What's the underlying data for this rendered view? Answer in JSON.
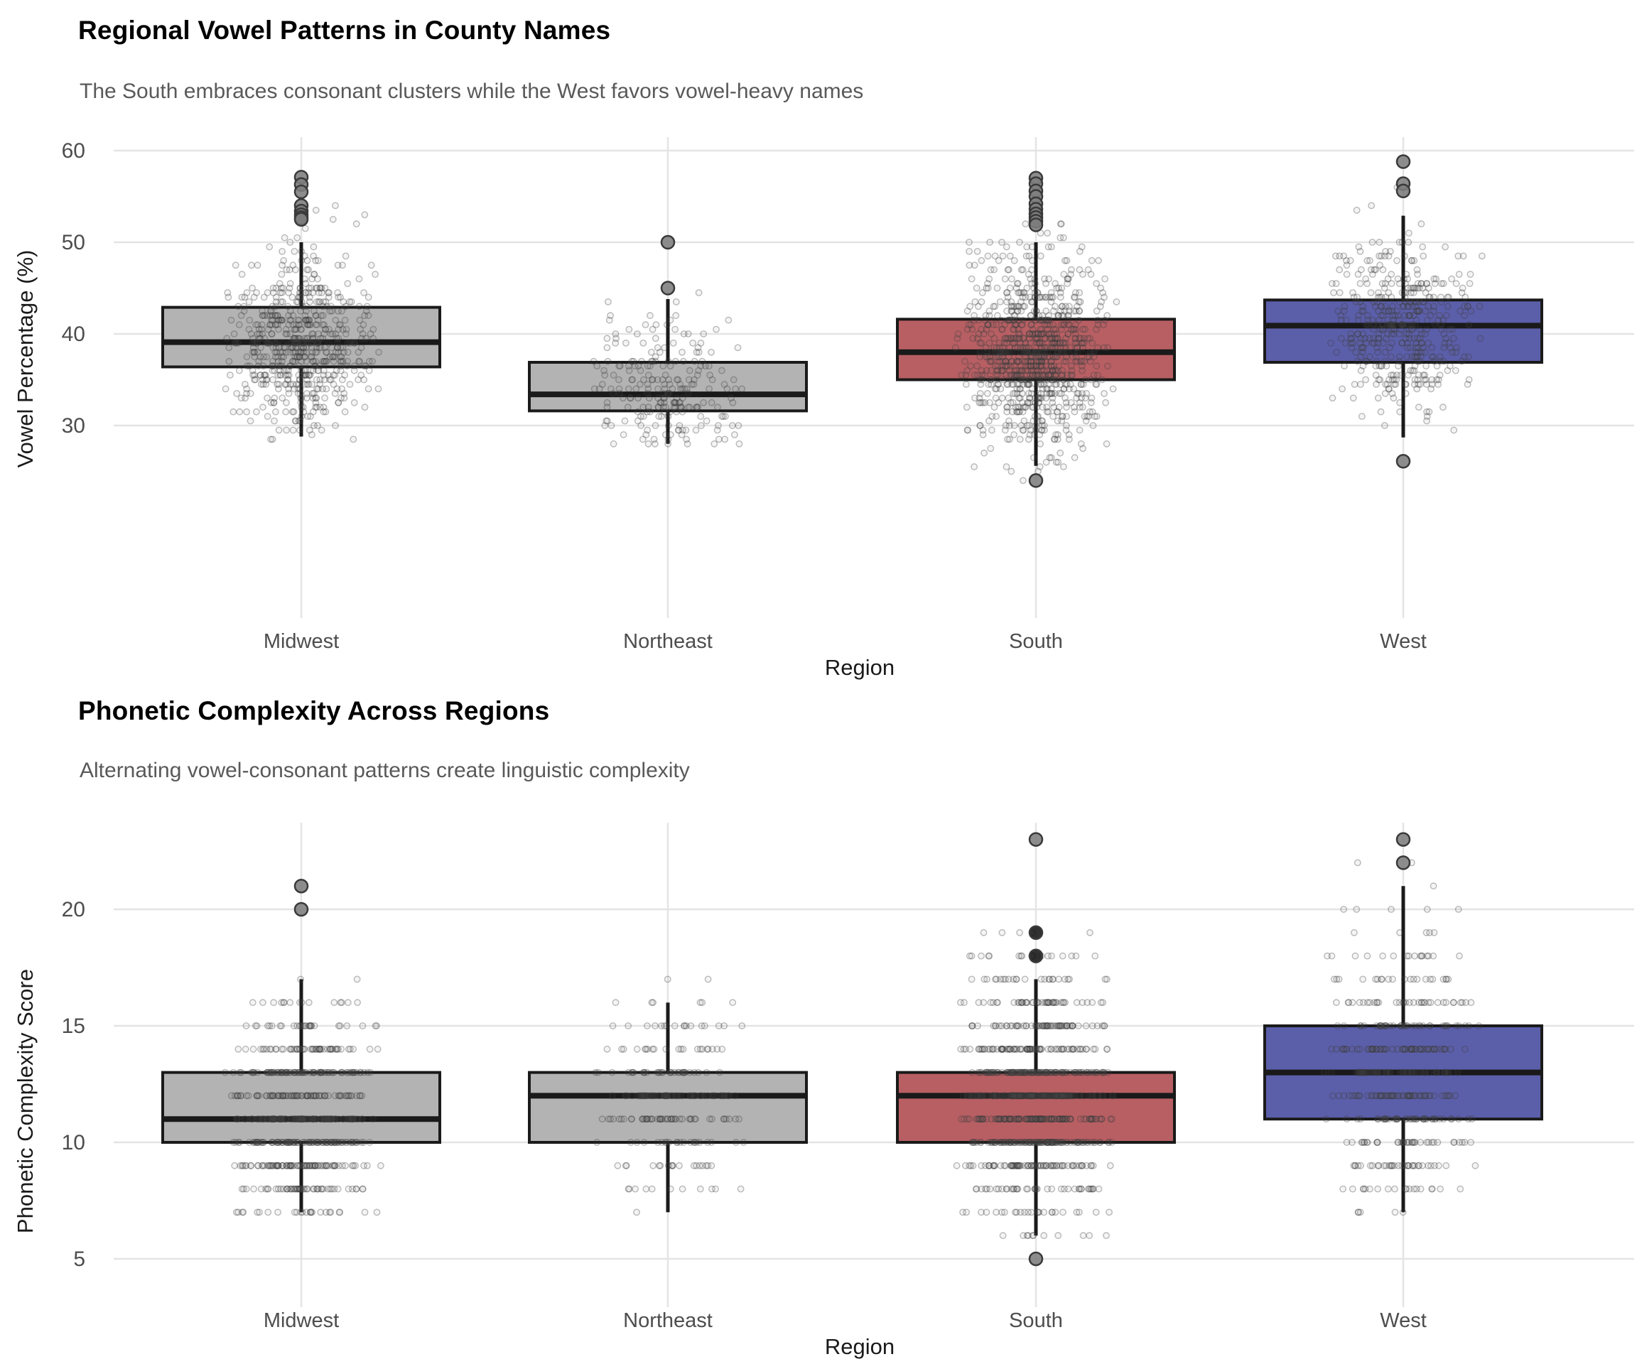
{
  "page": {
    "background": "#ffffff"
  },
  "chart_data": [
    {
      "type": "boxplot",
      "title": "Regional Vowel Patterns in County Names",
      "subtitle": "The South embraces consonant clusters while the West favors vowel-heavy names",
      "xlabel": "Region",
      "ylabel": "Vowel Percentage (%)",
      "categories": [
        "Midwest",
        "Northeast",
        "South",
        "West"
      ],
      "yticks": [
        60,
        50,
        40,
        30
      ],
      "ylim": [
        23,
        60.5
      ],
      "grid": true,
      "legend": "none",
      "series": [
        {
          "name": "Midwest",
          "color": "#b3b3b3",
          "box": {
            "q1": 36.4,
            "median": 39.1,
            "q3": 42.9,
            "whisker_low": 28.8,
            "whisker_high": 50.0
          },
          "outliers": [
            {
              "v": 57.1
            },
            {
              "v": 56.3
            },
            {
              "v": 55.5
            },
            {
              "v": 54.0
            },
            {
              "v": 53.4
            },
            {
              "v": 53.0
            },
            {
              "v": 52.7
            },
            {
              "v": 52.5
            }
          ],
          "jitter": {
            "count": 620,
            "sd": 4.6,
            "min": 27.6,
            "max": 57.3,
            "snap": 0.5
          }
        },
        {
          "name": "Northeast",
          "color": "#b3b3b3",
          "box": {
            "q1": 31.6,
            "median": 33.4,
            "q3": 36.9,
            "whisker_low": 28.0,
            "whisker_high": 43.8
          },
          "outliers": [
            {
              "v": 50.0
            },
            {
              "v": 45.0
            }
          ],
          "jitter": {
            "count": 230,
            "sd": 4.2,
            "min": 27.7,
            "max": 50.2,
            "snap": 0.5
          }
        },
        {
          "name": "South",
          "color": "#b85f63",
          "box": {
            "q1": 35.0,
            "median": 38.0,
            "q3": 41.6,
            "whisker_low": 25.6,
            "whisker_high": 50.0
          },
          "outliers": [
            {
              "v": 57.0
            },
            {
              "v": 56.4
            },
            {
              "v": 55.6
            },
            {
              "v": 55.0
            },
            {
              "v": 54.2
            },
            {
              "v": 53.6
            },
            {
              "v": 53.1
            },
            {
              "v": 52.7
            },
            {
              "v": 52.3
            },
            {
              "v": 51.9
            },
            {
              "v": 24.0
            }
          ],
          "jitter": {
            "count": 880,
            "sd": 5.2,
            "min": 23.6,
            "max": 57.2,
            "snap": 0.5
          }
        },
        {
          "name": "West",
          "color": "#5b5ea9",
          "box": {
            "q1": 36.9,
            "median": 40.9,
            "q3": 43.7,
            "whisker_low": 28.7,
            "whisker_high": 52.9
          },
          "outliers": [
            {
              "v": 58.8
            },
            {
              "v": 56.4
            },
            {
              "v": 55.6
            },
            {
              "v": 26.1
            }
          ],
          "jitter": {
            "count": 430,
            "sd": 4.6,
            "min": 25.9,
            "max": 59.0,
            "snap": 0.5
          }
        }
      ]
    },
    {
      "type": "boxplot",
      "title": "Phonetic Complexity Across Regions",
      "subtitle": "Alternating vowel-consonant patterns create linguistic complexity",
      "xlabel": "Region",
      "ylabel": "Phonetic Complexity Score",
      "categories": [
        "Midwest",
        "Northeast",
        "South",
        "West"
      ],
      "yticks": [
        20,
        15,
        10,
        5
      ],
      "ylim": [
        4.5,
        23.5
      ],
      "grid": true,
      "legend": "none",
      "series": [
        {
          "name": "Midwest",
          "color": "#b3b3b3",
          "box": {
            "q1": 10.0,
            "median": 11.0,
            "q3": 13.0,
            "whisker_low": 7.0,
            "whisker_high": 17.0
          },
          "outliers": [
            {
              "v": 21.0
            },
            {
              "v": 20.0
            }
          ],
          "jitter": {
            "count": 620,
            "sd": 2.3,
            "min": 6.6,
            "max": 17.5,
            "snap": 1
          }
        },
        {
          "name": "Northeast",
          "color": "#b3b3b3",
          "box": {
            "q1": 10.0,
            "median": 12.0,
            "q3": 13.0,
            "whisker_low": 7.0,
            "whisker_high": 16.0
          },
          "outliers": [],
          "jitter": {
            "count": 230,
            "sd": 2.2,
            "min": 6.5,
            "max": 17.3,
            "snap": 1
          }
        },
        {
          "name": "South",
          "color": "#b85f63",
          "box": {
            "q1": 10.0,
            "median": 12.0,
            "q3": 13.0,
            "whisker_low": 6.0,
            "whisker_high": 17.0
          },
          "outliers": [
            {
              "v": 23.0
            },
            {
              "v": 19.0,
              "dark": true
            },
            {
              "v": 18.0,
              "dark": true
            },
            {
              "v": 5.0
            }
          ],
          "jitter": {
            "count": 880,
            "sd": 2.7,
            "min": 5.0,
            "max": 19.0,
            "snap": 1
          }
        },
        {
          "name": "West",
          "color": "#5b5ea9",
          "box": {
            "q1": 11.0,
            "median": 13.0,
            "q3": 15.0,
            "whisker_low": 7.0,
            "whisker_high": 21.0
          },
          "outliers": [
            {
              "v": 23.0
            },
            {
              "v": 22.0
            }
          ],
          "jitter": {
            "count": 430,
            "sd": 2.9,
            "min": 6.9,
            "max": 23.2,
            "snap": 1
          }
        }
      ]
    }
  ]
}
